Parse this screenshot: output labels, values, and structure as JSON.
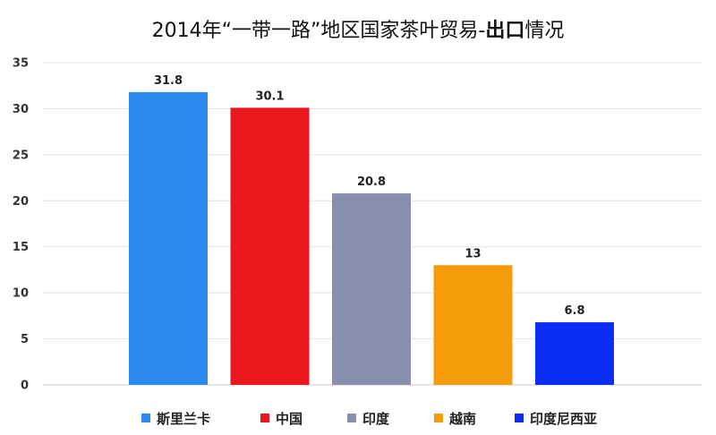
{
  "chart_data": {
    "type": "bar",
    "title_main": "2014年“一带一路”地区国家茶叶贸易-",
    "title_bold": "出口",
    "title_tail": "情况",
    "categories": [
      "斯里兰卡",
      "中国",
      "印度",
      "越南",
      "印度尼西亚"
    ],
    "values": [
      31.8,
      30.1,
      20.8,
      13,
      6.8
    ],
    "value_labels": [
      "31.8",
      "30.1",
      "20.8",
      "13",
      "6.8"
    ],
    "colors": [
      "#2d8bf0",
      "#e8181c",
      "#8890ae",
      "#f59c0a",
      "#0a2ef5"
    ],
    "ylim": [
      0,
      35
    ],
    "yticks": [
      0,
      5,
      10,
      15,
      20,
      25,
      30,
      35
    ],
    "grid": true,
    "legend_position": "bottom",
    "xlabel": "",
    "ylabel": ""
  }
}
